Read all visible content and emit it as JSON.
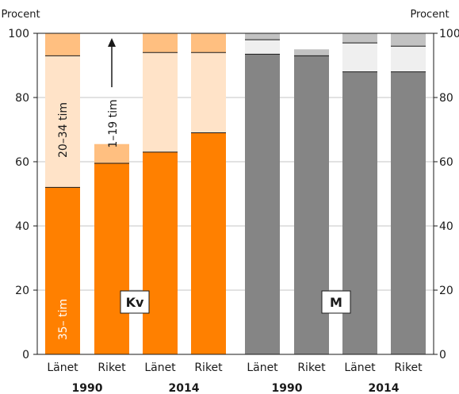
{
  "chart_data": {
    "type": "bar",
    "stacked": true,
    "y_unit_label_left": "Procent",
    "y_unit_label_right": "Procent",
    "ylim": [
      0,
      100
    ],
    "yticks": [
      0,
      20,
      40,
      60,
      80,
      100
    ],
    "grid": true,
    "categories": [
      "Länet",
      "Riket",
      "Länet",
      "Riket",
      "Länet",
      "Riket",
      "Länet",
      "Riket"
    ],
    "year_labels": [
      "1990",
      "2014",
      "1990",
      "2014"
    ],
    "groups": [
      {
        "label": "Kv",
        "colors": [
          "#ff8000",
          "#ffe3c8",
          "#ffbf80"
        ]
      },
      {
        "label": "M",
        "colors": [
          "#858585",
          "#efefef",
          "#c2c2c2"
        ]
      }
    ],
    "series": [
      {
        "name": "35– tim",
        "values": [
          52,
          59.5,
          63,
          69,
          93.5,
          93,
          88,
          88
        ]
      },
      {
        "name": "20–34 tim",
        "values": [
          41,
          0,
          31,
          25,
          4.5,
          0,
          9,
          8
        ]
      },
      {
        "name": "1–19 tim",
        "values": [
          7,
          6,
          6,
          6,
          2,
          2,
          3,
          4
        ]
      }
    ],
    "series_labels": {
      "hours_35": "35– tim",
      "hours_20_34": "20–34 tim",
      "hours_1_19": "1–19 tim"
    }
  }
}
